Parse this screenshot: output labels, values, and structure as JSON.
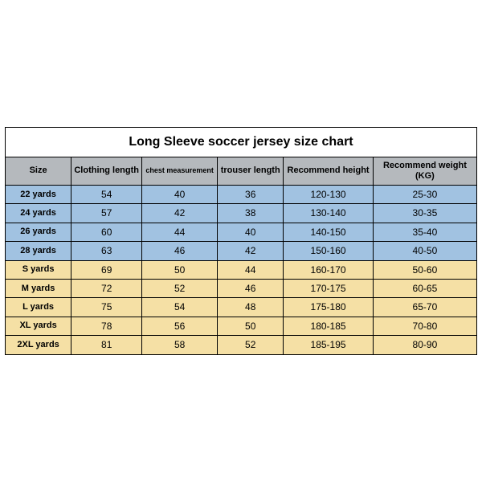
{
  "title": "Long Sleeve soccer jersey size chart",
  "colors": {
    "header_bg": "#b5b9bd",
    "kids_bg": "#a1c2e1",
    "adult_bg": "#f5e0a5",
    "border": "#000000",
    "text": "#000000"
  },
  "columns": [
    {
      "label": "Size",
      "width": "14%"
    },
    {
      "label": "Clothing length",
      "width": "15%"
    },
    {
      "label": "chest measurement",
      "width": "16%"
    },
    {
      "label": "trouser length",
      "width": "14%"
    },
    {
      "label": "Recommend height",
      "width": "19%"
    },
    {
      "label": "Recommend weight (KG)",
      "width": "22%"
    }
  ],
  "rows": [
    {
      "group": "kids",
      "size": "22 yards",
      "clothing_length": "54",
      "chest": "40",
      "trouser_length": "36",
      "rec_height": "120-130",
      "rec_weight": "25-30"
    },
    {
      "group": "kids",
      "size": "24 yards",
      "clothing_length": "57",
      "chest": "42",
      "trouser_length": "38",
      "rec_height": "130-140",
      "rec_weight": "30-35"
    },
    {
      "group": "kids",
      "size": "26 yards",
      "clothing_length": "60",
      "chest": "44",
      "trouser_length": "40",
      "rec_height": "140-150",
      "rec_weight": "35-40"
    },
    {
      "group": "kids",
      "size": "28 yards",
      "clothing_length": "63",
      "chest": "46",
      "trouser_length": "42",
      "rec_height": "150-160",
      "rec_weight": "40-50"
    },
    {
      "group": "adult",
      "size": "S yards",
      "clothing_length": "69",
      "chest": "50",
      "trouser_length": "44",
      "rec_height": "160-170",
      "rec_weight": "50-60"
    },
    {
      "group": "adult",
      "size": "M yards",
      "clothing_length": "72",
      "chest": "52",
      "trouser_length": "46",
      "rec_height": "170-175",
      "rec_weight": "60-65"
    },
    {
      "group": "adult",
      "size": "L yards",
      "clothing_length": "75",
      "chest": "54",
      "trouser_length": "48",
      "rec_height": "175-180",
      "rec_weight": "65-70"
    },
    {
      "group": "adult",
      "size": "XL yards",
      "clothing_length": "78",
      "chest": "56",
      "trouser_length": "50",
      "rec_height": "180-185",
      "rec_weight": "70-80"
    },
    {
      "group": "adult",
      "size": "2XL yards",
      "clothing_length": "81",
      "chest": "58",
      "trouser_length": "52",
      "rec_height": "185-195",
      "rec_weight": "80-90"
    }
  ]
}
